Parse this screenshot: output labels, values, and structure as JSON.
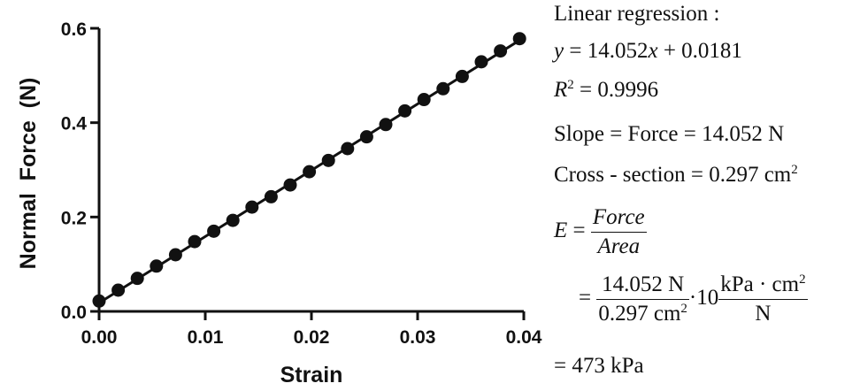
{
  "chart_data": {
    "type": "scatter",
    "xlabel": "Strain",
    "ylabel": "Normal  Force  (N)",
    "xlim": [
      0,
      0.04
    ],
    "ylim": [
      0,
      0.6
    ],
    "xticks": [
      "0.00",
      "0.01",
      "0.02",
      "0.03",
      "0.04"
    ],
    "yticks": [
      "0.0",
      "0.2",
      "0.4",
      "0.6"
    ],
    "fit": {
      "slope": 14.052,
      "intercept": 0.0181
    },
    "points": [
      {
        "x": 0.0,
        "y": 0.022
      },
      {
        "x": 0.0018,
        "y": 0.045
      },
      {
        "x": 0.0036,
        "y": 0.07
      },
      {
        "x": 0.0054,
        "y": 0.096
      },
      {
        "x": 0.0072,
        "y": 0.12
      },
      {
        "x": 0.009,
        "y": 0.148
      },
      {
        "x": 0.0108,
        "y": 0.17
      },
      {
        "x": 0.0126,
        "y": 0.193
      },
      {
        "x": 0.0144,
        "y": 0.221
      },
      {
        "x": 0.0162,
        "y": 0.243
      },
      {
        "x": 0.018,
        "y": 0.268
      },
      {
        "x": 0.0198,
        "y": 0.296
      },
      {
        "x": 0.0216,
        "y": 0.32
      },
      {
        "x": 0.0234,
        "y": 0.345
      },
      {
        "x": 0.0252,
        "y": 0.37
      },
      {
        "x": 0.027,
        "y": 0.396
      },
      {
        "x": 0.0288,
        "y": 0.425
      },
      {
        "x": 0.0306,
        "y": 0.449
      },
      {
        "x": 0.0324,
        "y": 0.472
      },
      {
        "x": 0.0342,
        "y": 0.498
      },
      {
        "x": 0.036,
        "y": 0.529
      },
      {
        "x": 0.0378,
        "y": 0.552
      },
      {
        "x": 0.0396,
        "y": 0.578
      }
    ]
  },
  "annotation": {
    "title": "Linear regression :",
    "eq_y_lhs": "y",
    "eq_y_rhs_a": "= 14.052",
    "eq_y_rhs_x": "x",
    "eq_y_rhs_b": "+ 0.0181",
    "r2_lhs": "R",
    "r2_sup": "2",
    "r2_rhs": "= 0.9996",
    "slope_line": "Slope = Force = 14.052 N",
    "cross_line": "Cross - section = 0.297 cm",
    "cross_sup": "2",
    "e_lhs": "E",
    "e_eq": "=",
    "e_num": "Force",
    "e_den": "Area",
    "calc_eq": "=",
    "calc_num1": "14.052 N",
    "calc_den1": "0.297 cm",
    "calc_den1_sup": "2",
    "calc_mult": "·10",
    "calc_num2": "kPa · cm",
    "calc_num2_sup": "2",
    "calc_den2": "N",
    "result_line": "= 473 kPa"
  }
}
